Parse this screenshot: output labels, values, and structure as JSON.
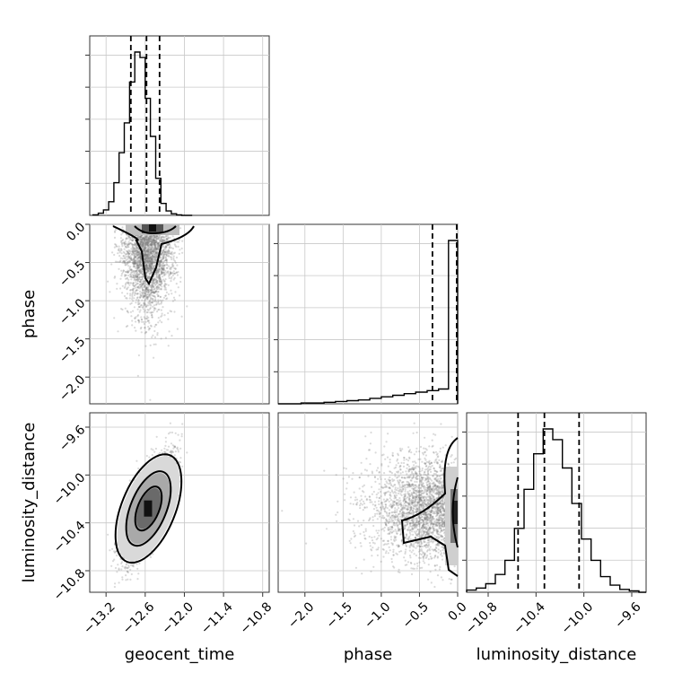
{
  "chart_data": {
    "type": "corner",
    "parameters": [
      "geocent_time",
      "phase",
      "luminosity_distance"
    ],
    "axes": {
      "geocent_time": {
        "range": [
          -13.45,
          -10.7
        ],
        "ticks": [
          -13.2,
          -12.6,
          -12.0,
          -11.4,
          -10.8
        ],
        "tick_labels": [
          "−13.2",
          "−12.6",
          "−12.0",
          "−11.4",
          "−10.8"
        ]
      },
      "phase": {
        "range": [
          -2.35,
          0.0
        ],
        "ticks": [
          -2.0,
          -1.5,
          -1.0,
          -0.5,
          0.0
        ],
        "tick_labels": [
          "−2.0",
          "−1.5",
          "−1.0",
          "−0.5",
          "0.0"
        ]
      },
      "luminosity_distance": {
        "range": [
          -10.98,
          -9.48
        ],
        "ticks": [
          -10.8,
          -10.4,
          -10.0,
          -9.6
        ],
        "tick_labels": [
          "−10.8",
          "−10.4",
          "−10.0",
          "−9.6"
        ]
      }
    },
    "histograms": {
      "geocent_time": {
        "bin_edges": [
          -13.4,
          -13.32,
          -13.24,
          -13.16,
          -13.08,
          -13.0,
          -12.92,
          -12.84,
          -12.76,
          -12.68,
          -12.6,
          -12.52,
          -12.44,
          -12.36,
          -12.28,
          -12.2,
          -12.12,
          -12.04,
          -11.96,
          -11.88
        ],
        "counts": [
          1,
          4,
          10,
          25,
          60,
          115,
          170,
          245,
          300,
          290,
          215,
          145,
          68,
          22,
          8,
          3,
          1,
          0,
          0
        ],
        "quantiles": [
          -12.82,
          -12.58,
          -12.38
        ]
      },
      "phase": {
        "bin_edges": [
          -2.35,
          -2.2,
          -2.05,
          -1.9,
          -1.75,
          -1.6,
          -1.45,
          -1.3,
          -1.15,
          -1.0,
          -0.85,
          -0.7,
          -0.55,
          -0.4,
          -0.25,
          -0.12,
          0.0
        ],
        "counts": [
          0,
          0,
          1,
          1,
          2,
          3,
          4,
          5,
          7,
          9,
          11,
          13,
          15,
          17,
          19,
          210
        ],
        "quantiles": [
          -0.33,
          -0.01,
          0.0
        ]
      },
      "luminosity_distance": {
        "bin_edges": [
          -10.98,
          -10.9,
          -10.82,
          -10.74,
          -10.66,
          -10.58,
          -10.5,
          -10.42,
          -10.34,
          -10.26,
          -10.18,
          -10.1,
          -10.02,
          -9.94,
          -9.86,
          -9.78,
          -9.7,
          -9.62,
          -9.54,
          -9.48
        ],
        "counts": [
          3,
          6,
          12,
          25,
          45,
          90,
          145,
          195,
          230,
          215,
          175,
          125,
          75,
          45,
          22,
          10,
          4,
          2,
          0
        ],
        "quantiles": [
          -10.55,
          -10.33,
          -10.04
        ]
      }
    },
    "contours_2d": {
      "phase_vs_geocent_time": {
        "mode": [
          -12.55,
          -0.03
        ]
      },
      "luminosity_distance_vs_geocent_time": {
        "mode": [
          -12.55,
          -10.28
        ]
      },
      "luminosity_distance_vs_phase": {
        "mode": [
          -0.02,
          -10.25
        ]
      }
    },
    "title": "",
    "grid": true
  },
  "labels": {
    "x_geocent_time": "geocent_time",
    "x_phase": "phase",
    "x_luminosity_distance": "luminosity_distance",
    "y_phase": "phase",
    "y_luminosity_distance": "luminosity_distance"
  }
}
